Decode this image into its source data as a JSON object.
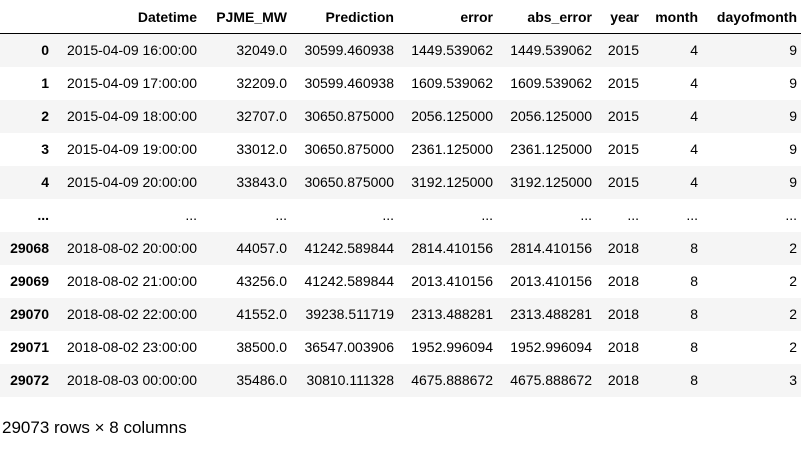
{
  "table": {
    "columns": [
      "Datetime",
      "PJME_MW",
      "Prediction",
      "error",
      "abs_error",
      "year",
      "month",
      "dayofmonth"
    ],
    "rows": [
      {
        "index": "0",
        "cells": [
          "2015-04-09 16:00:00",
          "32049.0",
          "30599.460938",
          "1449.539062",
          "1449.539062",
          "2015",
          "4",
          "9"
        ]
      },
      {
        "index": "1",
        "cells": [
          "2015-04-09 17:00:00",
          "32209.0",
          "30599.460938",
          "1609.539062",
          "1609.539062",
          "2015",
          "4",
          "9"
        ]
      },
      {
        "index": "2",
        "cells": [
          "2015-04-09 18:00:00",
          "32707.0",
          "30650.875000",
          "2056.125000",
          "2056.125000",
          "2015",
          "4",
          "9"
        ]
      },
      {
        "index": "3",
        "cells": [
          "2015-04-09 19:00:00",
          "33012.0",
          "30650.875000",
          "2361.125000",
          "2361.125000",
          "2015",
          "4",
          "9"
        ]
      },
      {
        "index": "4",
        "cells": [
          "2015-04-09 20:00:00",
          "33843.0",
          "30650.875000",
          "3192.125000",
          "3192.125000",
          "2015",
          "4",
          "9"
        ]
      },
      {
        "index": "...",
        "cells": [
          "...",
          "...",
          "...",
          "...",
          "...",
          "...",
          "...",
          "..."
        ]
      },
      {
        "index": "29068",
        "cells": [
          "2018-08-02 20:00:00",
          "44057.0",
          "41242.589844",
          "2814.410156",
          "2814.410156",
          "2018",
          "8",
          "2"
        ]
      },
      {
        "index": "29069",
        "cells": [
          "2018-08-02 21:00:00",
          "43256.0",
          "41242.589844",
          "2013.410156",
          "2013.410156",
          "2018",
          "8",
          "2"
        ]
      },
      {
        "index": "29070",
        "cells": [
          "2018-08-02 22:00:00",
          "41552.0",
          "39238.511719",
          "2313.488281",
          "2313.488281",
          "2018",
          "8",
          "2"
        ]
      },
      {
        "index": "29071",
        "cells": [
          "2018-08-02 23:00:00",
          "38500.0",
          "36547.003906",
          "1952.996094",
          "1952.996094",
          "2018",
          "8",
          "2"
        ]
      },
      {
        "index": "29072",
        "cells": [
          "2018-08-03 00:00:00",
          "35486.0",
          "30810.111328",
          "4675.888672",
          "4675.888672",
          "2018",
          "8",
          "3"
        ]
      }
    ]
  },
  "footer": {
    "shape_text": "29073 rows × 8 columns"
  }
}
